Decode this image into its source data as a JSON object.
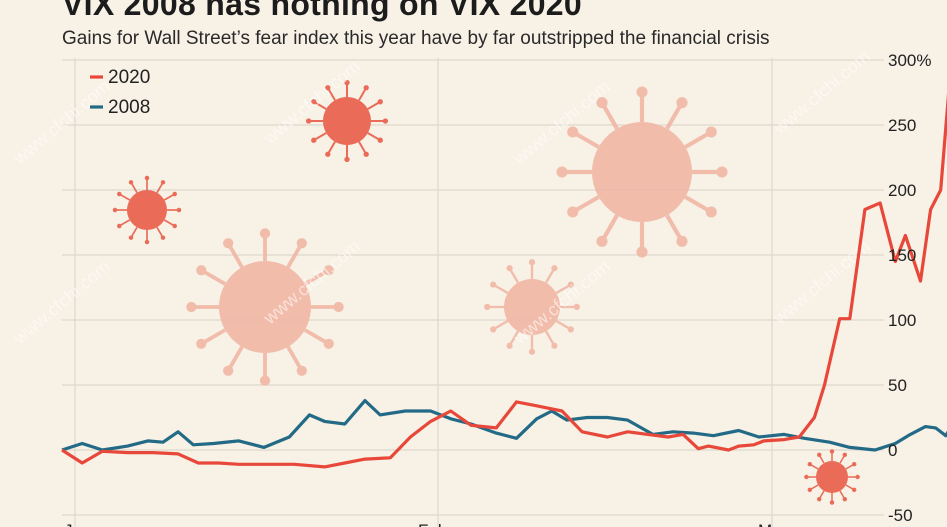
{
  "title": "VIX 2008 has nothing on VIX 2020",
  "subtitle": "Gains for Wall Street’s fear index this year have by far outstripped the financial crisis",
  "watermark": "www.cfchi.com",
  "colors": {
    "s2020": "#e8483a",
    "s2008": "#236a86",
    "background": "#f7f1e6",
    "grid": "#ddd8cd",
    "virus": "#e8604d",
    "virus_light": "#f2b8a6"
  },
  "icons": [
    "virus-icon"
  ],
  "chart_data": {
    "type": "line",
    "ylim": [
      -50,
      300
    ],
    "yticks": [
      -50,
      0,
      50,
      100,
      150,
      200,
      250,
      300
    ],
    "ytick_labels": [
      "-50",
      "0",
      "50",
      "100",
      "150",
      "200",
      "250",
      "300%"
    ],
    "xlabels": [
      "Jan",
      "Feb",
      "Mar"
    ],
    "legend_position": "top-left",
    "grid": true,
    "series": [
      {
        "name": "2020",
        "color": "#e8483a",
        "x": [
          0,
          4,
          8,
          13,
          18,
          23,
          27,
          31,
          35,
          38,
          42,
          46,
          52,
          56,
          60,
          65,
          69,
          73,
          77,
          81,
          86,
          90,
          94,
          99,
          103,
          108,
          112,
          116,
          120,
          123,
          126,
          128,
          132,
          134,
          137,
          139,
          143,
          146,
          149,
          151,
          154,
          156,
          159,
          162,
          165
        ],
        "values": [
          0,
          -10,
          -1,
          -2,
          -2,
          -3,
          -10,
          -10,
          -11,
          -11,
          -11,
          -11,
          -13,
          -10,
          -7,
          -6,
          10,
          22,
          30,
          19,
          17,
          37,
          34,
          30,
          14,
          10,
          14,
          12,
          10,
          12,
          1,
          3,
          0,
          3,
          4,
          7,
          8,
          10,
          25,
          50,
          101,
          101,
          185,
          190,
          145
        ]
      },
      {
        "name": "2008",
        "color": "#236a86",
        "x": [
          0,
          4,
          8,
          13,
          17,
          20,
          23,
          26,
          30,
          35,
          40,
          45,
          49,
          52,
          56,
          60,
          63,
          68,
          73,
          77,
          81,
          86,
          90,
          94,
          97,
          100,
          104,
          108,
          112,
          117,
          121,
          125,
          129,
          134,
          138,
          143,
          147,
          152,
          156,
          161,
          165
        ],
        "values": [
          0,
          5,
          0,
          3,
          7,
          6,
          14,
          4,
          5,
          7,
          2,
          10,
          27,
          22,
          20,
          38,
          27,
          30,
          30,
          24,
          20,
          13,
          9,
          24,
          30,
          23,
          25,
          25,
          23,
          12,
          14,
          13,
          11,
          15,
          10,
          12,
          9,
          6,
          2,
          0,
          5
        ]
      }
    ],
    "series_tail": {
      "2020": {
        "x": [
          165,
          167,
          170,
          172,
          174,
          176
        ],
        "values": [
          145,
          165,
          130,
          185,
          200,
          295
        ]
      },
      "2008": {
        "x": [
          165,
          168,
          171,
          173,
          175,
          177
        ],
        "values": [
          5,
          12,
          18,
          17,
          11,
          24
        ]
      }
    }
  },
  "legend": [
    {
      "label": "2020",
      "color": "#e8483a"
    },
    {
      "label": "2008",
      "color": "#236a86"
    }
  ]
}
